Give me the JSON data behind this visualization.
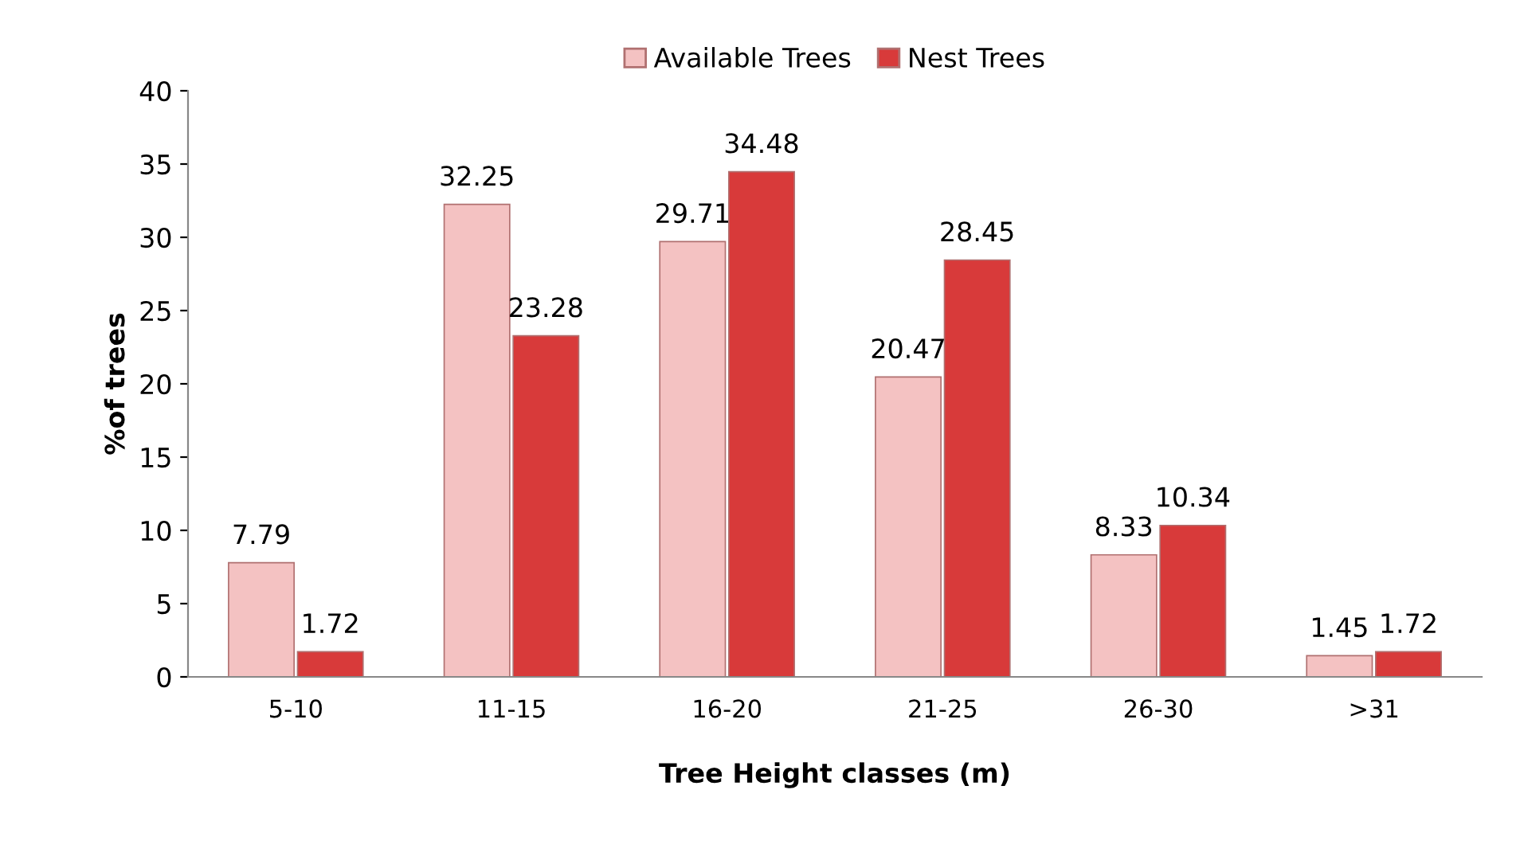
{
  "chart_data": {
    "type": "bar",
    "xlabel": "Tree Height classes (m)",
    "ylabel": "%of trees",
    "categories": [
      "5-10",
      "11-15",
      "16-20",
      "21-25",
      "26-30",
      ">31"
    ],
    "series": [
      {
        "name": "Available Trees",
        "color": "#f4c2c2",
        "values": [
          7.79,
          32.25,
          29.71,
          20.47,
          8.33,
          1.45
        ]
      },
      {
        "name": "Nest Trees",
        "color": "#d83a3a",
        "values": [
          1.72,
          23.28,
          34.48,
          28.45,
          10.34,
          1.72
        ]
      }
    ],
    "ylim": [
      0,
      40
    ],
    "yticks": [
      0,
      5,
      10,
      15,
      20,
      25,
      30,
      35,
      40
    ],
    "grid": false,
    "legend": "top",
    "data_labels": true
  }
}
